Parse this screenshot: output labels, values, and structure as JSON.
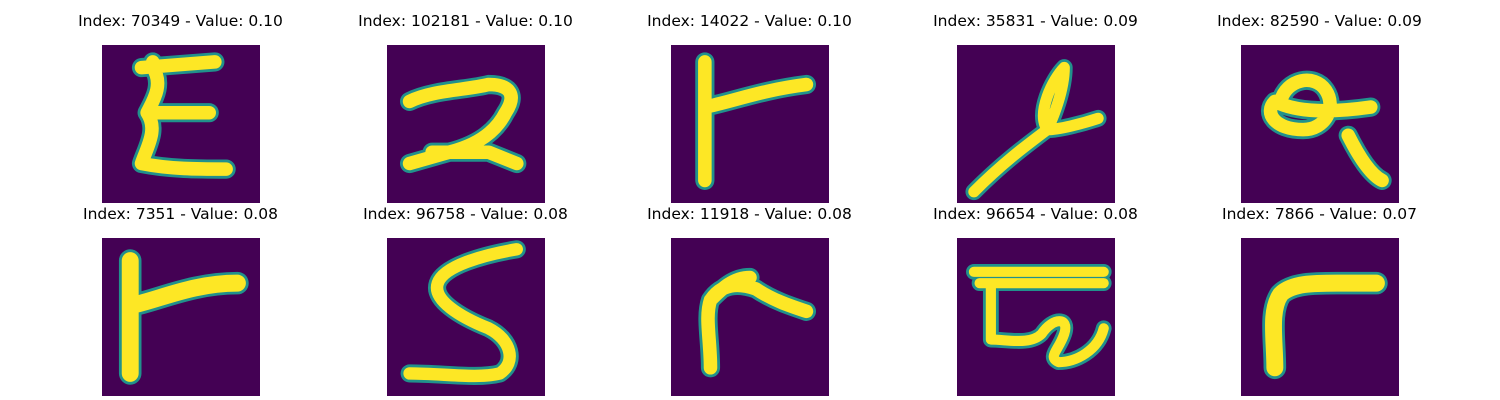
{
  "colors": {
    "background": "#440154",
    "stroke_fill": "#fde725",
    "stroke_mid": "#5ec962",
    "stroke_edge": "#21918c"
  },
  "items": [
    {
      "index": "70349",
      "value": "0.10",
      "label": "Index: 70349 - Value: 0.10",
      "glyph": "E-like"
    },
    {
      "index": "102181",
      "value": "0.10",
      "label": "Index: 102181 - Value: 0.10",
      "glyph": "2-like"
    },
    {
      "index": "14022",
      "value": "0.10",
      "label": "Index: 14022 - Value: 0.10",
      "glyph": "r-like"
    },
    {
      "index": "35831",
      "value": "0.09",
      "label": "Index: 35831 - Value: 0.09",
      "glyph": "loop-stroke"
    },
    {
      "index": "82590",
      "value": "0.09",
      "label": "Index: 82590 - Value: 0.09",
      "glyph": "a-like"
    },
    {
      "index": "7351",
      "value": "0.08",
      "label": "Index: 7351 - Value: 0.08",
      "glyph": "r-like"
    },
    {
      "index": "96758",
      "value": "0.08",
      "label": "Index: 96758 - Value: 0.08",
      "glyph": "S-like"
    },
    {
      "index": "11918",
      "value": "0.08",
      "label": "Index: 11918 - Value: 0.08",
      "glyph": "r-like"
    },
    {
      "index": "96654",
      "value": "0.08",
      "label": "Index: 96654 - Value: 0.08",
      "glyph": "G-like"
    },
    {
      "index": "7866",
      "value": "0.07",
      "label": "Index: 7866 - Value: 0.07",
      "glyph": "r-like"
    }
  ]
}
